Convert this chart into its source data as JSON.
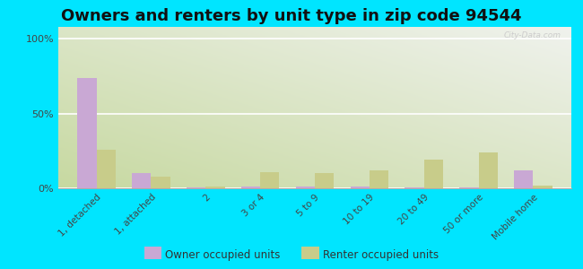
{
  "title": "Owners and renters by unit type in zip code 94544",
  "categories": [
    "1, detached",
    "1, attached",
    "2",
    "3 or 4",
    "5 to 9",
    "10 to 19",
    "20 to 49",
    "50 or more",
    "Mobile home"
  ],
  "owner_values": [
    74,
    10,
    0.5,
    1.5,
    1,
    1.5,
    0.5,
    0.5,
    12
  ],
  "renter_values": [
    26,
    8,
    1.5,
    11,
    10,
    12,
    19,
    24,
    2
  ],
  "owner_color": "#c9a8d4",
  "renter_color": "#c8cc8a",
  "outer_bg": "#00e5ff",
  "yticks": [
    0,
    50,
    100
  ],
  "ylabels": [
    "0%",
    "50%",
    "100%"
  ],
  "ylim": [
    0,
    108
  ],
  "title_fontsize": 13,
  "watermark": "City-Data.com"
}
